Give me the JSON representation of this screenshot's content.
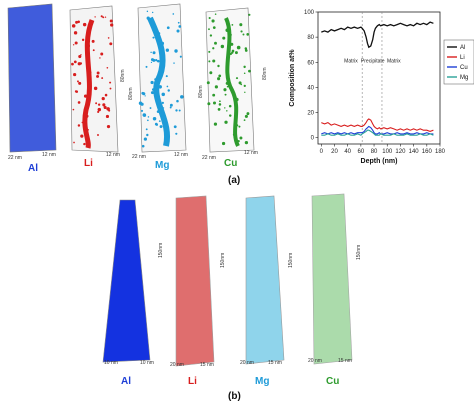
{
  "colors": {
    "Al": "#1f3fd6",
    "Li": "#d81e1e",
    "Mg": "#1e9bd8",
    "Cu": "#2e9b2e",
    "curve_Al": "#111111"
  },
  "panel_a": {
    "label": "(a)",
    "columns": [
      {
        "element": "Al",
        "dim_x": "22 nm",
        "dim_y": "12 nm",
        "height_label": ""
      },
      {
        "element": "Li",
        "dim_x": "",
        "dim_y": "12 nm",
        "height_label": "80nm"
      },
      {
        "element": "Mg",
        "dim_x": "22 nm",
        "dim_y": "12 nm",
        "height_label": "80nm"
      },
      {
        "element": "Cu",
        "dim_x": "22 nm",
        "dim_y": "12 nm",
        "height_label": "80nm"
      }
    ]
  },
  "panel_b": {
    "label": "(b)",
    "columns": [
      {
        "element": "Al",
        "dim_x": "10 nm",
        "dim_y": "10 nm",
        "height_label": "150nm"
      },
      {
        "element": "Li",
        "dim_x": "20 nm",
        "dim_y": "15 nm",
        "height_label": "150nm"
      },
      {
        "element": "Mg",
        "dim_x": "20 nm",
        "dim_y": "15 nm",
        "height_label": "150nm"
      },
      {
        "element": "Cu",
        "dim_x": "20 nm",
        "dim_y": "15 nm",
        "height_label": "150nm"
      }
    ]
  },
  "chart_data": {
    "type": "line",
    "title": "",
    "xlabel": "Depth (nm)",
    "ylabel": "Composition at%",
    "xlim": [
      -5,
      180
    ],
    "ylim": [
      -5,
      100
    ],
    "xticks": [
      0,
      20,
      40,
      60,
      80,
      100,
      120,
      140,
      160,
      180
    ],
    "yticks": [
      0,
      20,
      40,
      60,
      80,
      100
    ],
    "legend_position": "right",
    "region_labels": [
      "Matrix",
      "Precipitate",
      "Matrix"
    ],
    "region_label_x": [
      45,
      78,
      110
    ],
    "region_label_y": 60,
    "region_boundaries": [
      62,
      92
    ],
    "series": [
      {
        "name": "Al",
        "color": "#111111",
        "x": [
          0,
          5,
          10,
          15,
          20,
          25,
          30,
          35,
          40,
          45,
          50,
          55,
          60,
          62,
          65,
          68,
          70,
          72,
          75,
          78,
          80,
          82,
          85,
          88,
          90,
          95,
          100,
          105,
          110,
          115,
          120,
          125,
          130,
          135,
          140,
          145,
          150,
          155,
          160,
          165,
          170
        ],
        "y": [
          84,
          85,
          84,
          86,
          85,
          86,
          87,
          86,
          88,
          87,
          88,
          87,
          88,
          87,
          85,
          80,
          75,
          72,
          73,
          78,
          84,
          87,
          89,
          90,
          89,
          90,
          89,
          90,
          89,
          90,
          91,
          90,
          89,
          90,
          89,
          91,
          90,
          91,
          90,
          92,
          91
        ]
      },
      {
        "name": "Li",
        "color": "#d81e1e",
        "x": [
          0,
          5,
          10,
          15,
          20,
          25,
          30,
          35,
          40,
          45,
          50,
          55,
          60,
          62,
          65,
          68,
          70,
          72,
          75,
          78,
          80,
          82,
          85,
          88,
          90,
          95,
          100,
          105,
          110,
          115,
          120,
          125,
          130,
          135,
          140,
          145,
          150,
          155,
          160,
          165,
          170
        ],
        "y": [
          12,
          11,
          12,
          10,
          11,
          10,
          9,
          10,
          9,
          10,
          9,
          10,
          9,
          9,
          10,
          12,
          14,
          15,
          14,
          11,
          9,
          8,
          7,
          8,
          7,
          8,
          7,
          8,
          7,
          6,
          7,
          6,
          7,
          6,
          7,
          6,
          7,
          6,
          6,
          5,
          6
        ]
      },
      {
        "name": "Cu",
        "color": "#1e3fd6",
        "x": [
          0,
          5,
          10,
          15,
          20,
          25,
          30,
          35,
          40,
          45,
          50,
          55,
          60,
          62,
          65,
          68,
          70,
          72,
          75,
          78,
          80,
          82,
          85,
          88,
          90,
          95,
          100,
          105,
          110,
          115,
          120,
          125,
          130,
          135,
          140,
          145,
          150,
          155,
          160,
          165,
          170
        ],
        "y": [
          3,
          4,
          3,
          4,
          3,
          4,
          3,
          4,
          3,
          4,
          3,
          4,
          4,
          4,
          5,
          7,
          8,
          9,
          8,
          6,
          4,
          3,
          3,
          4,
          3,
          3,
          4,
          3,
          3,
          4,
          3,
          3,
          4,
          3,
          3,
          4,
          3,
          3,
          4,
          3,
          3
        ]
      },
      {
        "name": "Mg",
        "color": "#2aa198",
        "x": [
          0,
          5,
          10,
          15,
          20,
          25,
          30,
          35,
          40,
          45,
          50,
          55,
          60,
          62,
          65,
          68,
          70,
          72,
          75,
          78,
          80,
          82,
          85,
          88,
          90,
          95,
          100,
          105,
          110,
          115,
          120,
          125,
          130,
          135,
          140,
          145,
          150,
          155,
          160,
          165,
          170
        ],
        "y": [
          2,
          2,
          3,
          2,
          2,
          3,
          2,
          2,
          3,
          2,
          2,
          3,
          2,
          3,
          4,
          5,
          6,
          6,
          5,
          4,
          3,
          2,
          2,
          2,
          3,
          2,
          2,
          2,
          3,
          2,
          2,
          2,
          3,
          2,
          2,
          2,
          3,
          2,
          2,
          3,
          2
        ]
      }
    ]
  }
}
